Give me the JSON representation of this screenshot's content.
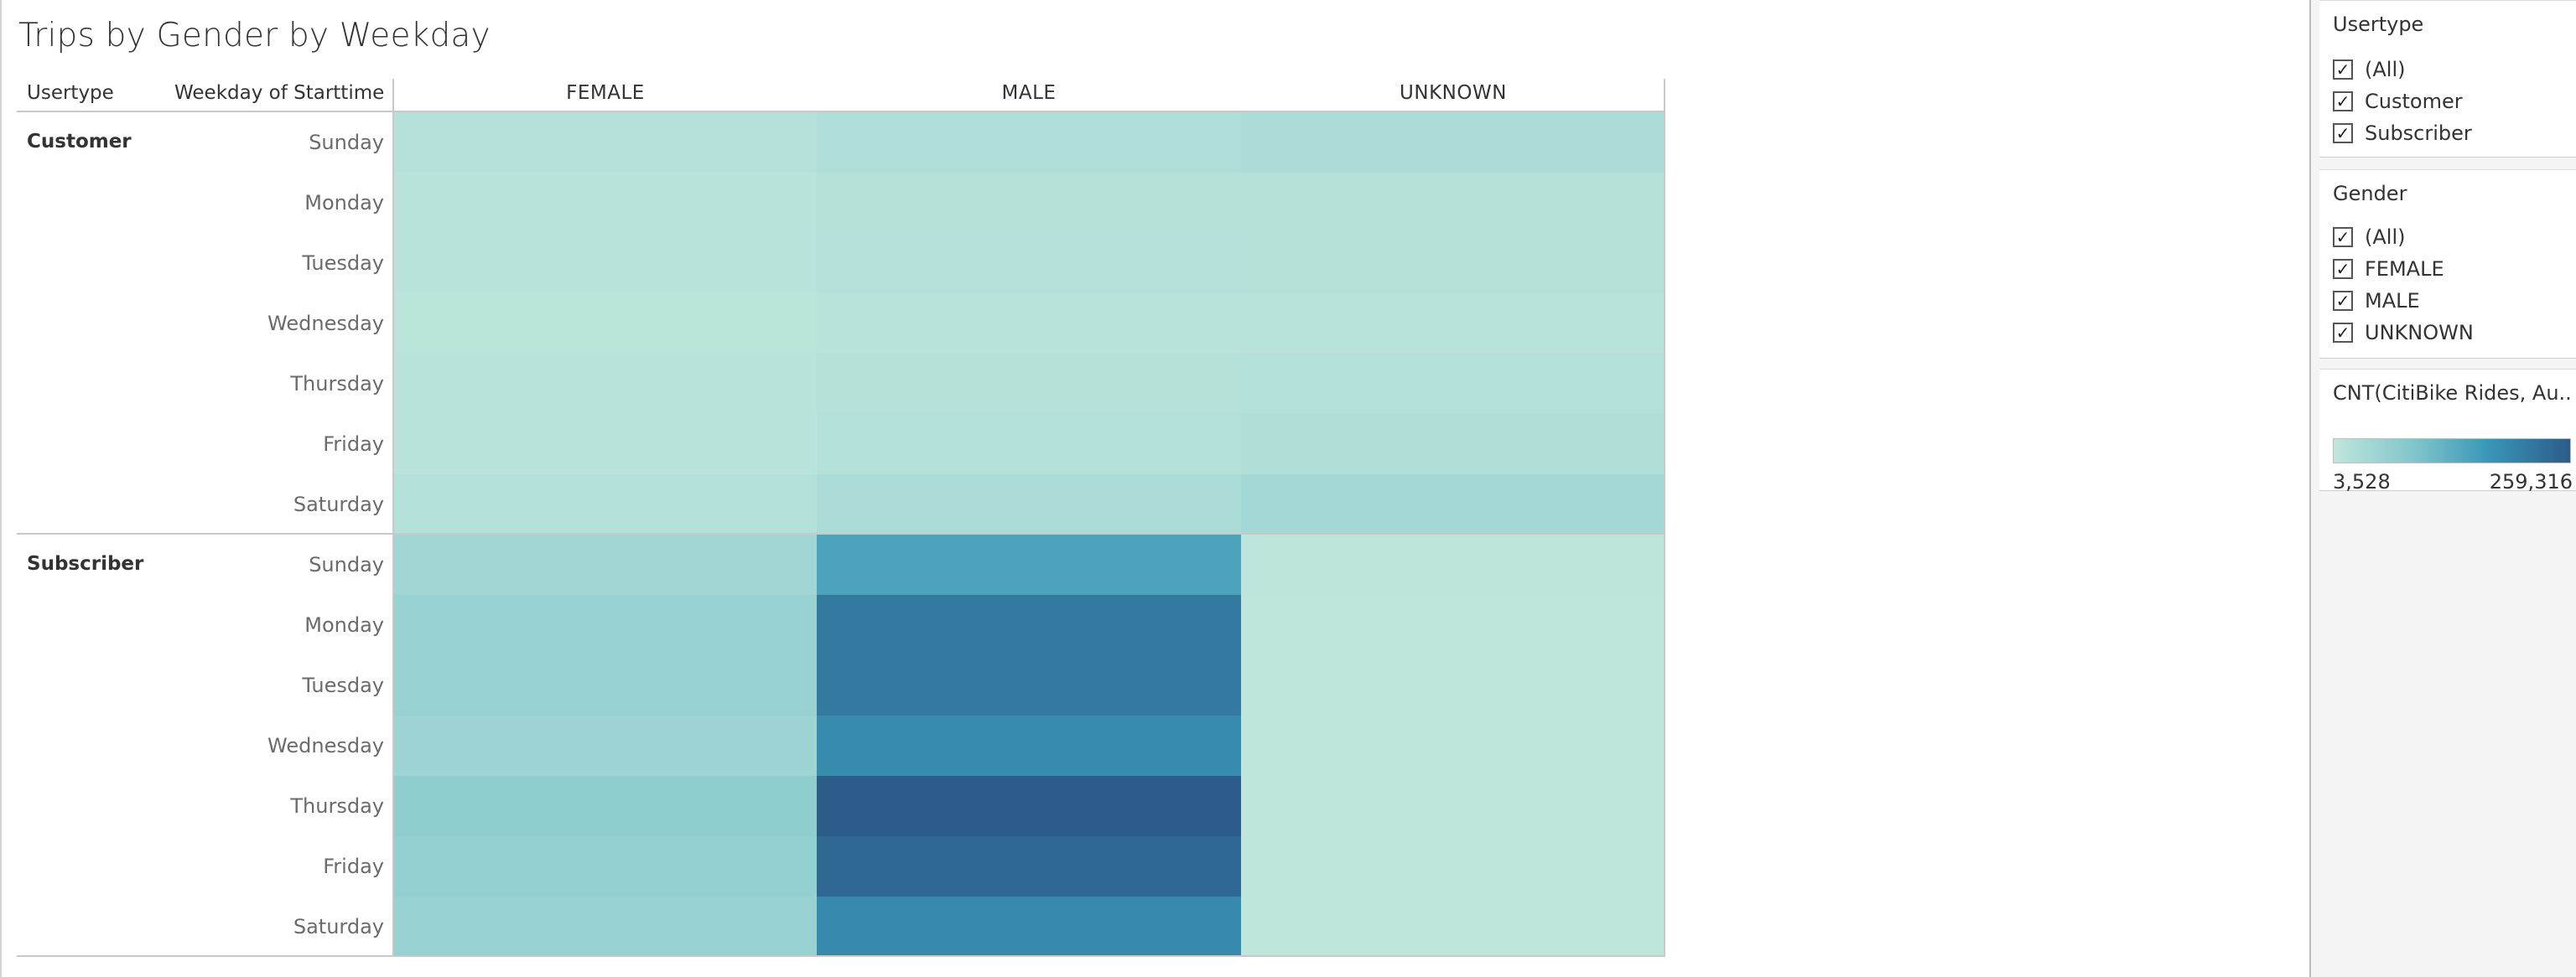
{
  "chart_data": {
    "type": "heatmap",
    "title": "Trips by Gender by Weekday",
    "row_header_1": "Usertype",
    "row_header_2": "Weekday of Starttime",
    "columns": [
      "FEMALE",
      "MALE",
      "UNKNOWN"
    ],
    "groups": [
      {
        "name": "Customer",
        "rows": [
          "Sunday",
          "Monday",
          "Tuesday",
          "Wednesday",
          "Thursday",
          "Friday",
          "Saturday"
        ],
        "values": [
          [
            16000,
            25000,
            30000
          ],
          [
            11000,
            17000,
            17000
          ],
          [
            10000,
            16000,
            17000
          ],
          [
            9000,
            12000,
            14000
          ],
          [
            10000,
            18000,
            20000
          ],
          [
            11000,
            20000,
            23000
          ],
          [
            20000,
            30000,
            42000
          ]
        ]
      },
      {
        "name": "Subscriber",
        "rows": [
          "Sunday",
          "Monday",
          "Tuesday",
          "Wednesday",
          "Thursday",
          "Friday",
          "Saturday"
        ],
        "values": [
          [
            45000,
            150000,
            5000
          ],
          [
            58000,
            215000,
            4500
          ],
          [
            58000,
            215000,
            4500
          ],
          [
            50000,
            185000,
            4500
          ],
          [
            70000,
            259316,
            4500
          ],
          [
            63000,
            240000,
            4500
          ],
          [
            60000,
            190000,
            4500
          ]
        ]
      }
    ],
    "color_range": [
      3528,
      259316
    ],
    "colors": [
      "#bfe6dc",
      "#7fc4cb",
      "#3a97b7",
      "#2c5c89"
    ]
  },
  "filters": {
    "usertype": {
      "title": "Usertype",
      "items": [
        {
          "label": "(All)",
          "checked": true
        },
        {
          "label": "Customer",
          "checked": true
        },
        {
          "label": "Subscriber",
          "checked": true
        }
      ]
    },
    "gender": {
      "title": "Gender",
      "items": [
        {
          "label": "(All)",
          "checked": true
        },
        {
          "label": "FEMALE",
          "checked": true
        },
        {
          "label": "MALE",
          "checked": true
        },
        {
          "label": "UNKNOWN",
          "checked": true
        }
      ]
    }
  },
  "legend": {
    "title": "CNT(CitiBike Rides, Au...",
    "min_label": "3,528",
    "max_label": "259,316"
  }
}
